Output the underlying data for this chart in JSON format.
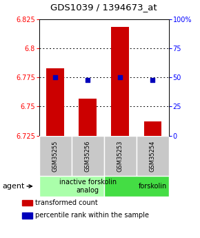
{
  "title": "GDS1039 / 1394673_at",
  "samples": [
    "GSM35255",
    "GSM35256",
    "GSM35253",
    "GSM35254"
  ],
  "bar_values": [
    6.783,
    6.757,
    6.818,
    6.737
  ],
  "dot_values": [
    6.775,
    6.773,
    6.775,
    6.773
  ],
  "ylim": [
    6.725,
    6.825
  ],
  "yticks_left": [
    6.825,
    6.8,
    6.775,
    6.75,
    6.725
  ],
  "yticks_right_vals": [
    6.825,
    6.8,
    6.775,
    6.75,
    6.725
  ],
  "yticks_right_labels": [
    "100%",
    "75",
    "50",
    "25",
    "0"
  ],
  "bar_color": "#cc0000",
  "dot_color": "#0000bb",
  "bar_bottom": 6.725,
  "groups": [
    {
      "label": "inactive forskolin\nanalog",
      "start": 0,
      "end": 2,
      "color": "#aaffaa"
    },
    {
      "label": "forskolin",
      "start": 2,
      "end": 4,
      "color": "#44dd44"
    }
  ],
  "agent_label": "agent",
  "legend_items": [
    {
      "color": "#cc0000",
      "label": "transformed count"
    },
    {
      "color": "#0000bb",
      "label": "percentile rank within the sample"
    }
  ],
  "background_color": "#ffffff",
  "title_fontsize": 9.5,
  "tick_fontsize": 7,
  "sample_fontsize": 6,
  "group_fontsize": 7,
  "legend_fontsize": 7
}
